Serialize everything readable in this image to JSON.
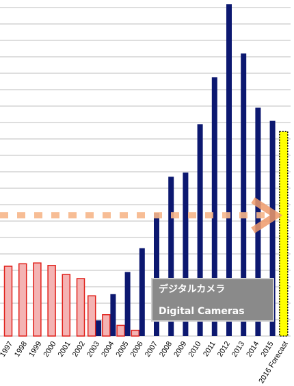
{
  "chart_data": {
    "type": "bar",
    "categories": [
      "1997",
      "1998",
      "1999",
      "2000",
      "2001",
      "2002",
      "2003",
      "2004",
      "2005",
      "2006",
      "2007",
      "2008",
      "2009",
      "2010",
      "2011",
      "2012",
      "2013",
      "2014",
      "2015",
      "2016 Forecast"
    ],
    "series": [
      {
        "color": "#f4b3b3",
        "values": [
          4.25,
          4.4,
          4.45,
          4.3,
          3.75,
          3.5,
          2.45,
          1.3,
          0.65,
          0.35,
          null,
          null,
          null,
          null,
          null,
          null,
          null,
          null,
          null,
          null
        ]
      },
      {
        "color": "#0c1870",
        "values": [
          null,
          null,
          null,
          null,
          null,
          null,
          0.95,
          2.55,
          3.9,
          5.35,
          7.5,
          9.7,
          9.95,
          12.9,
          15.75,
          20.2,
          17.2,
          13.9,
          13.1,
          null
        ]
      },
      {
        "color": "#ffff00",
        "values": [
          null,
          null,
          null,
          null,
          null,
          null,
          null,
          null,
          null,
          null,
          null,
          null,
          null,
          null,
          null,
          null,
          null,
          null,
          null,
          12.45
        ]
      }
    ],
    "reference_line": 7.35,
    "annotation": [
      "デジタルカメラ",
      "Digital Cameras"
    ],
    "ylim": [
      0,
      20.5
    ],
    "yticks": [
      0,
      1,
      2,
      3,
      4,
      5,
      6,
      7,
      8,
      9,
      10,
      11,
      12,
      13,
      14,
      15,
      16,
      17,
      18,
      19,
      20
    ],
    "grid": true
  }
}
